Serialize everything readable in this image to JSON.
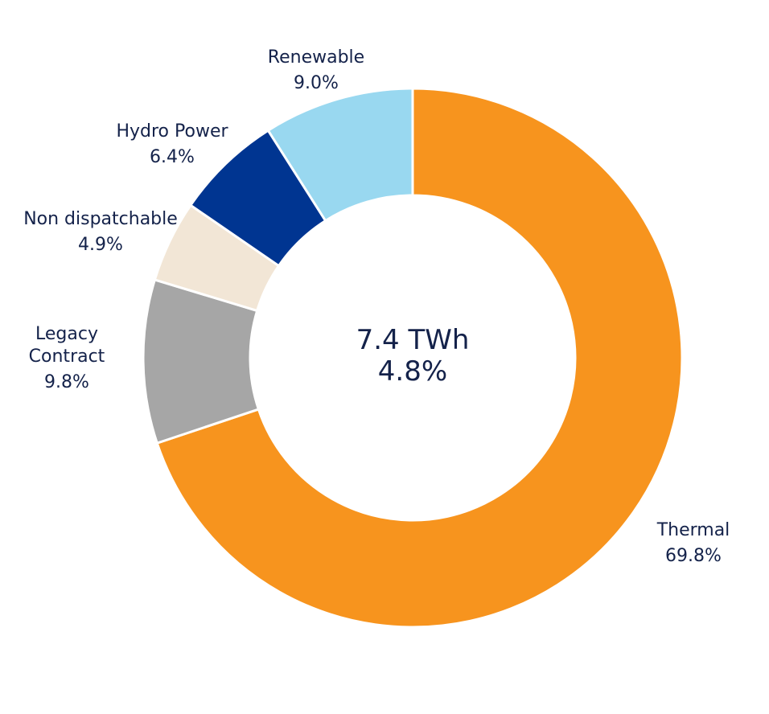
{
  "chart_data": {
    "type": "pie",
    "donut": true,
    "center": {
      "line1": "7.4 TWh",
      "line2": "4.8%"
    },
    "slices": [
      {
        "name": "Thermal",
        "label_lines": [
          "Thermal"
        ],
        "value": 69.8,
        "value_label": "69.8%",
        "color": "#f7941e"
      },
      {
        "name": "Legacy Contract",
        "label_lines": [
          "Legacy",
          "Contract"
        ],
        "value": 9.8,
        "value_label": "9.8%",
        "color": "#a6a6a6"
      },
      {
        "name": "Non dispatchable",
        "label_lines": [
          "Non dispatchable"
        ],
        "value": 4.9,
        "value_label": "4.9%",
        "color": "#f2e6d6"
      },
      {
        "name": "Hydro Power",
        "label_lines": [
          "Hydro Power"
        ],
        "value": 6.4,
        "value_label": "6.4%",
        "color": "#003591"
      },
      {
        "name": "Renewable",
        "label_lines": [
          "Renewable"
        ],
        "value": 9.0,
        "value_label": "9.0%",
        "color": "#99d8f0"
      }
    ]
  }
}
